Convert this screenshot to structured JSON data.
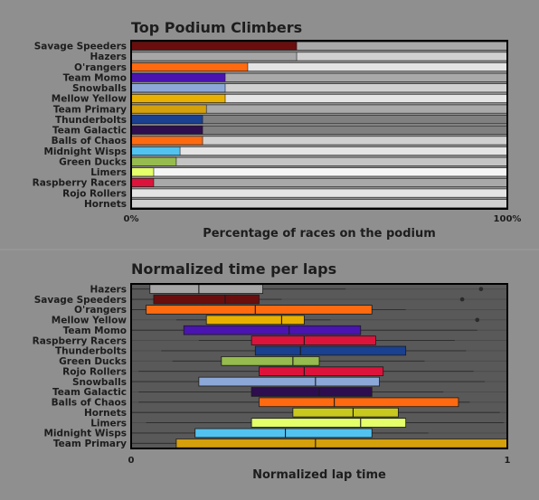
{
  "chart_data": [
    {
      "type": "bar",
      "title": "Top Podium Climbers",
      "xlabel": "Percentage of races on the podium",
      "ylabel": "",
      "xlim": [
        0,
        100
      ],
      "x_tick_labels": [
        "0%",
        "100%"
      ],
      "bar_max": 100,
      "categories": [
        "Savage Speeders",
        "Hazers",
        "O'rangers",
        "Team Momo",
        "Snowballs",
        "Mellow Yellow",
        "Team Primary",
        "Thunderbolts",
        "Team Galactic",
        "Balls of Chaos",
        "Midnight Wisps",
        "Green Ducks",
        "Limers",
        "Raspberry Racers",
        "Rojo Rollers",
        "Hornets"
      ],
      "values": [
        44,
        44,
        31,
        25,
        25,
        25,
        20,
        19,
        19,
        19,
        13,
        12,
        6,
        6,
        0,
        0
      ],
      "colors": [
        "#6a0d0d",
        "#a6a6a6",
        "#ff6a10",
        "#4a14b0",
        "#8ca8d8",
        "#e8b000",
        "#d4a00c",
        "#1a4090",
        "#2e0e4e",
        "#ff6a10",
        "#52c3f0",
        "#96bb4e",
        "#e4ff6a",
        "#dc143c",
        "#b4b4b4",
        "#e6e6e6"
      ],
      "track_colors": [
        "#a9a9a9",
        "#d0d0d0",
        "#e4e4e4",
        "#a9a9a9",
        "#d0d0d0",
        "#e4e4e4",
        "#a9a9a9",
        "#808080",
        "#808080",
        "#d0d0d0",
        "#e4e4e4",
        "#c4c4c4",
        "#f4f4f4",
        "#a9a9a9",
        "#e4e4e4",
        "#d0d0d0"
      ],
      "grid": false
    },
    {
      "type": "box",
      "title": "Normalized time per laps",
      "xlabel": "Normalized lap time",
      "ylabel": "",
      "xlim": [
        0,
        1
      ],
      "x_tick_labels": [
        "0",
        "1"
      ],
      "grid": true,
      "categories": [
        "Hazers",
        "Savage Speeders",
        "O'rangers",
        "Mellow Yellow",
        "Team Momo",
        "Raspberry Racers",
        "Thunderbolts",
        "Green Ducks",
        "Rojo Rollers",
        "Snowballs",
        "Team Galactic",
        "Balls of Chaos",
        "Hornets",
        "Limers",
        "Midnight Wisps",
        "Team Primary"
      ],
      "boxes": [
        {
          "q1": 0.05,
          "median": 0.18,
          "q3": 0.35,
          "whisker_low": 0.0,
          "whisker_high": 0.57,
          "outliers": [
            0.93
          ],
          "color": "#a6a6a6"
        },
        {
          "q1": 0.06,
          "median": 0.25,
          "q3": 0.34,
          "whisker_low": 0.0,
          "whisker_high": 0.4,
          "outliers": [
            0.88
          ],
          "color": "#6a0d0d"
        },
        {
          "q1": 0.04,
          "median": 0.33,
          "q3": 0.64,
          "whisker_low": 0.0,
          "whisker_high": 0.73,
          "outliers": [],
          "color": "#ff6a10"
        },
        {
          "q1": 0.2,
          "median": 0.4,
          "q3": 0.46,
          "whisker_low": 0.12,
          "whisker_high": 0.53,
          "outliers": [
            0.92
          ],
          "color": "#e8b000"
        },
        {
          "q1": 0.14,
          "median": 0.42,
          "q3": 0.61,
          "whisker_low": 0.0,
          "whisker_high": 0.92,
          "outliers": [],
          "color": "#4a14b0"
        },
        {
          "q1": 0.32,
          "median": 0.46,
          "q3": 0.65,
          "whisker_low": 0.18,
          "whisker_high": 0.86,
          "outliers": [],
          "color": "#dc143c"
        },
        {
          "q1": 0.33,
          "median": 0.45,
          "q3": 0.73,
          "whisker_low": 0.08,
          "whisker_high": 0.89,
          "outliers": [],
          "color": "#1a4090"
        },
        {
          "q1": 0.24,
          "median": 0.43,
          "q3": 0.5,
          "whisker_low": 0.11,
          "whisker_high": 0.78,
          "outliers": [],
          "color": "#96bb4e"
        },
        {
          "q1": 0.34,
          "median": 0.46,
          "q3": 0.67,
          "whisker_low": 0.02,
          "whisker_high": 0.91,
          "outliers": [],
          "color": "#dc143c"
        },
        {
          "q1": 0.18,
          "median": 0.49,
          "q3": 0.66,
          "whisker_low": 0.0,
          "whisker_high": 0.94,
          "outliers": [],
          "color": "#8ca8d8"
        },
        {
          "q1": 0.32,
          "median": 0.5,
          "q3": 0.64,
          "whisker_low": 0.02,
          "whisker_high": 0.83,
          "outliers": [],
          "color": "#2e0e4e"
        },
        {
          "q1": 0.34,
          "median": 0.54,
          "q3": 0.87,
          "whisker_low": 0.02,
          "whisker_high": 0.9,
          "outliers": [],
          "color": "#ff6a10"
        },
        {
          "q1": 0.43,
          "median": 0.59,
          "q3": 0.71,
          "whisker_low": 0.0,
          "whisker_high": 0.98,
          "outliers": [],
          "color": "#c8c81e"
        },
        {
          "q1": 0.32,
          "median": 0.61,
          "q3": 0.73,
          "whisker_low": 0.04,
          "whisker_high": 0.99,
          "outliers": [],
          "color": "#e4ff6a"
        },
        {
          "q1": 0.17,
          "median": 0.41,
          "q3": 0.64,
          "whisker_low": 0.0,
          "whisker_high": 0.79,
          "outliers": [],
          "color": "#52c3f0"
        },
        {
          "q1": 0.12,
          "median": 0.49,
          "q3": 1.0,
          "whisker_low": 0.0,
          "whisker_high": 1.0,
          "outliers": [],
          "color": "#d4a00c"
        }
      ]
    }
  ]
}
